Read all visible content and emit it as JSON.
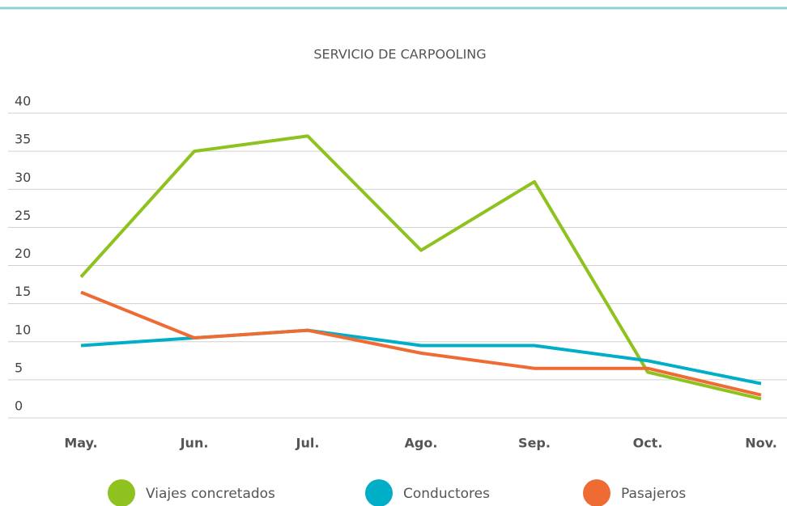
{
  "chart_data": {
    "type": "line",
    "title": "SERVICIO DE CARPOOLING",
    "categories": [
      "May.",
      "Jun.",
      "Jul.",
      "Ago.",
      "Sep.",
      "Oct.",
      "Nov."
    ],
    "series": [
      {
        "name": "Viajes concretados",
        "color": "#8dc21f",
        "values": [
          18.5,
          35,
          37,
          22,
          31,
          6,
          2.5
        ]
      },
      {
        "name": "Conductores",
        "color": "#00aec7",
        "values": [
          9.5,
          10.5,
          11.5,
          9.5,
          9.5,
          7.5,
          4.5
        ]
      },
      {
        "name": "Pasajeros",
        "color": "#ef6b34",
        "values": [
          16.5,
          10.5,
          11.5,
          8.5,
          6.5,
          6.5,
          3
        ]
      }
    ],
    "ylim": [
      0,
      40
    ],
    "yticks": [
      0,
      5,
      10,
      15,
      20,
      25,
      30,
      35,
      40
    ],
    "grid": true,
    "legend": "bottom"
  }
}
